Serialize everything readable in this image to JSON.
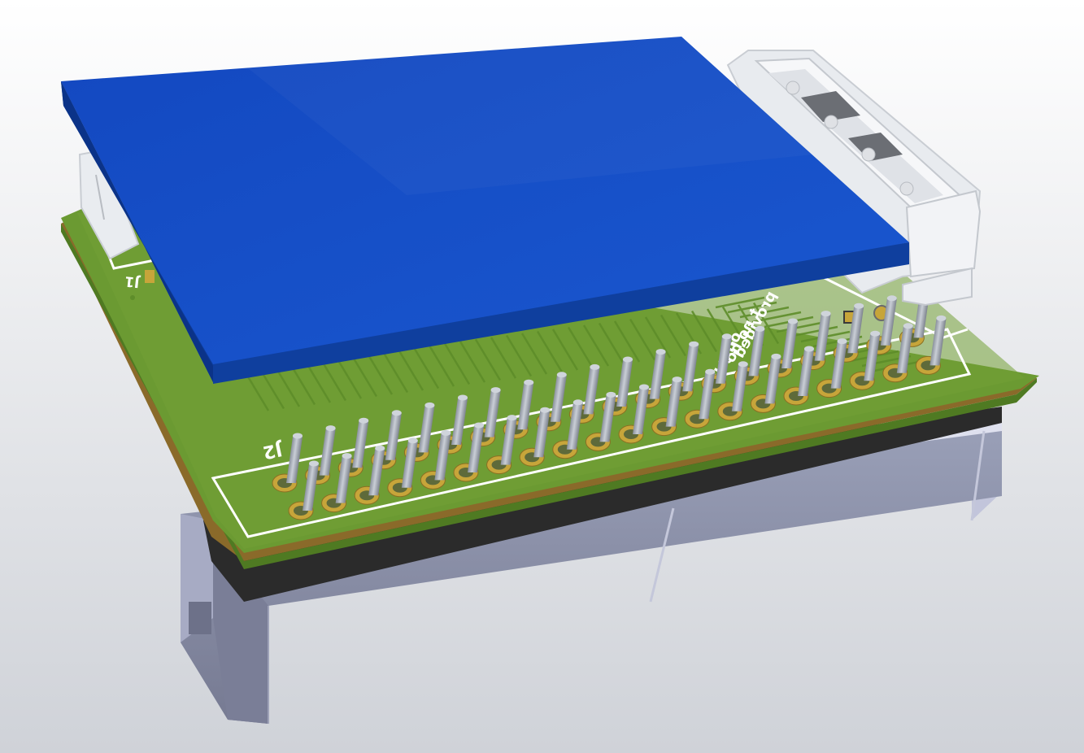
{
  "viewer": {
    "background_top": "#ffffff",
    "background_bottom": "#cfd2d8"
  },
  "board": {
    "silkscreen": {
      "j1": "J1",
      "j2": "J2",
      "note_line1": "provided",
      "note_line2": "t no ho",
      "note_line3": "only use"
    },
    "colors": {
      "pcb_top": "#6b9a32",
      "pcb_edge": "#4f7a22",
      "core": "#8a6a2a",
      "silk": "#ffffff",
      "pad": "#c7a53a",
      "pin": "#a7aeb8",
      "display": "#1552c6",
      "display_edge": "#0e3c9a",
      "connector": "#eceff3",
      "housing": "#8a8ea6"
    },
    "pin_header": {
      "rows": 2,
      "columns": 20
    }
  }
}
